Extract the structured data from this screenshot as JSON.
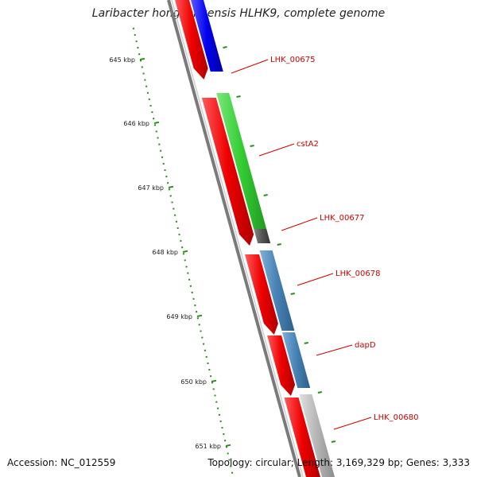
{
  "title": "Laribacter hongkongensis HLHK9, complete genome",
  "footer": {
    "accession": "Accession: NC_012559",
    "summary": "Topology: circular; Length: 3,169,329 bp; Genes: 3,333"
  },
  "ruler": {
    "ticks": [
      "645 kbp",
      "646 kbp",
      "647 kbp",
      "648 kbp",
      "649 kbp",
      "650 kbp",
      "651 kbp"
    ],
    "tick_color": "#2e8b1e"
  },
  "genes": [
    {
      "label": "LHK_00675",
      "color": "#0000ee"
    },
    {
      "label": "cstA2",
      "color": "#33cc33"
    },
    {
      "label": "LHK_00677",
      "color": "#555555"
    },
    {
      "label": "LHK_00678",
      "color": "#4682b4"
    },
    {
      "label": "dapD",
      "color": "#4682b4"
    },
    {
      "label": "LHK_00680",
      "color": "#b0b0b0"
    }
  ],
  "cds_color": "#ee0000",
  "label_color": "#cc0000"
}
